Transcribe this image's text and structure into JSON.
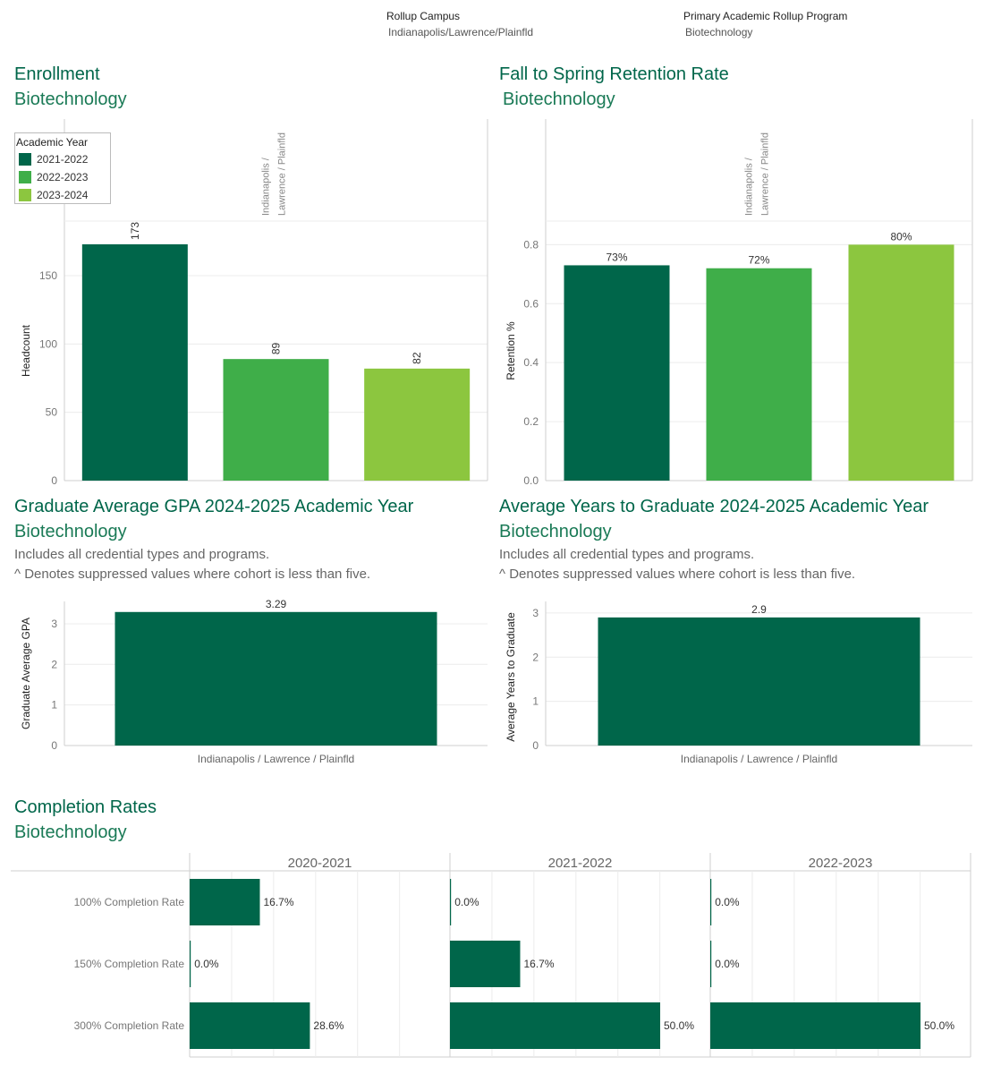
{
  "filters": {
    "campus": {
      "label": "Rollup Campus",
      "value": "Indianapolis/Lawrence/Plainfld"
    },
    "program": {
      "label": "Primary Academic Rollup Program",
      "value": "Biotechnology"
    }
  },
  "colors": {
    "dark_green": "#00664a",
    "mid_green": "#3fae49",
    "light_green": "#8cc63f"
  },
  "sections": {
    "enrollment": {
      "title": "Enrollment",
      "subtitle": "Biotechnology"
    },
    "retention": {
      "title": "Fall to Spring Retention Rate",
      "subtitle": "Biotechnology"
    },
    "gpa": {
      "title": "Graduate Average GPA 2024-2025 Academic Year",
      "subtitle": "Biotechnology",
      "note1": "Includes all credential types and programs.",
      "note2": "^ Denotes suppressed values where cohort is less than five."
    },
    "years": {
      "title": "Average Years to Graduate 2024-2025 Academic Year",
      "subtitle": "Biotechnology",
      "note1": "Includes all credential types and programs.",
      "note2": "^ Denotes suppressed values where cohort is less than five."
    },
    "completion": {
      "title": "Completion Rates",
      "subtitle": "Biotechnology"
    }
  },
  "legend": {
    "title": "Academic Year",
    "items": [
      {
        "label": "2021-2022",
        "color": "#00664a"
      },
      {
        "label": "2022-2023",
        "color": "#3fae49"
      },
      {
        "label": "2023-2024",
        "color": "#8cc63f"
      }
    ]
  },
  "chart_data": [
    {
      "id": "enrollment",
      "type": "bar",
      "categories": [
        "2021-2022",
        "2022-2023",
        "2023-2024"
      ],
      "values": [
        173,
        89,
        82
      ],
      "value_labels": [
        "173",
        "89",
        "82"
      ],
      "column_header": [
        "Indianapolis /",
        "Lawrence / Plainfld"
      ],
      "ylabel": "Headcount",
      "yticks": [
        0,
        50,
        100,
        150
      ],
      "ylim": [
        0,
        190
      ],
      "grid": true
    },
    {
      "id": "retention",
      "type": "bar",
      "categories": [
        "2021-2022",
        "2022-2023",
        "2023-2024"
      ],
      "values": [
        0.73,
        0.72,
        0.8
      ],
      "value_labels": [
        "73%",
        "72%",
        "80%"
      ],
      "column_header": [
        "Indianapolis /",
        "Lawrence / Plainfld"
      ],
      "ylabel": "Retention %",
      "yticks": [
        0.0,
        0.2,
        0.4,
        0.6,
        0.8
      ],
      "ytick_labels": [
        "0.0",
        "0.2",
        "0.4",
        "0.6",
        "0.8"
      ],
      "ylim": [
        0,
        0.88
      ],
      "grid": true
    },
    {
      "id": "gpa",
      "type": "bar",
      "categories": [
        "Indianapolis / Lawrence / Plainfld"
      ],
      "values": [
        3.29
      ],
      "value_labels": [
        "3.29"
      ],
      "ylabel": "Graduate Average GPA",
      "yticks": [
        0,
        1,
        2,
        3
      ],
      "ylim": [
        0,
        3.55
      ],
      "grid": true
    },
    {
      "id": "years",
      "type": "bar",
      "categories": [
        "Indianapolis / Lawrence / Plainfld"
      ],
      "values": [
        2.9
      ],
      "value_labels": [
        "2.9"
      ],
      "ylabel": "Average Years to Graduate",
      "yticks": [
        0,
        1,
        2,
        3
      ],
      "ylim": [
        0,
        3.1
      ],
      "grid": true
    },
    {
      "id": "completion",
      "type": "bar",
      "orientation": "horizontal",
      "panels": [
        "2020-2021",
        "2021-2022",
        "2022-2023"
      ],
      "rows": [
        "100% Completion Rate",
        "150% Completion Rate",
        "300% Completion Rate"
      ],
      "values": [
        [
          16.7,
          0.0,
          28.6
        ],
        [
          0.0,
          16.7,
          50.0
        ],
        [
          0.0,
          0.0,
          50.0
        ]
      ],
      "value_labels": [
        [
          "16.7%",
          "0.0%",
          "28.6%"
        ],
        [
          "0.0%",
          "16.7%",
          "50.0%"
        ],
        [
          "0.0%",
          "0.0%",
          "50.0%"
        ]
      ],
      "xlim": [
        0,
        60
      ],
      "grid": true
    }
  ]
}
